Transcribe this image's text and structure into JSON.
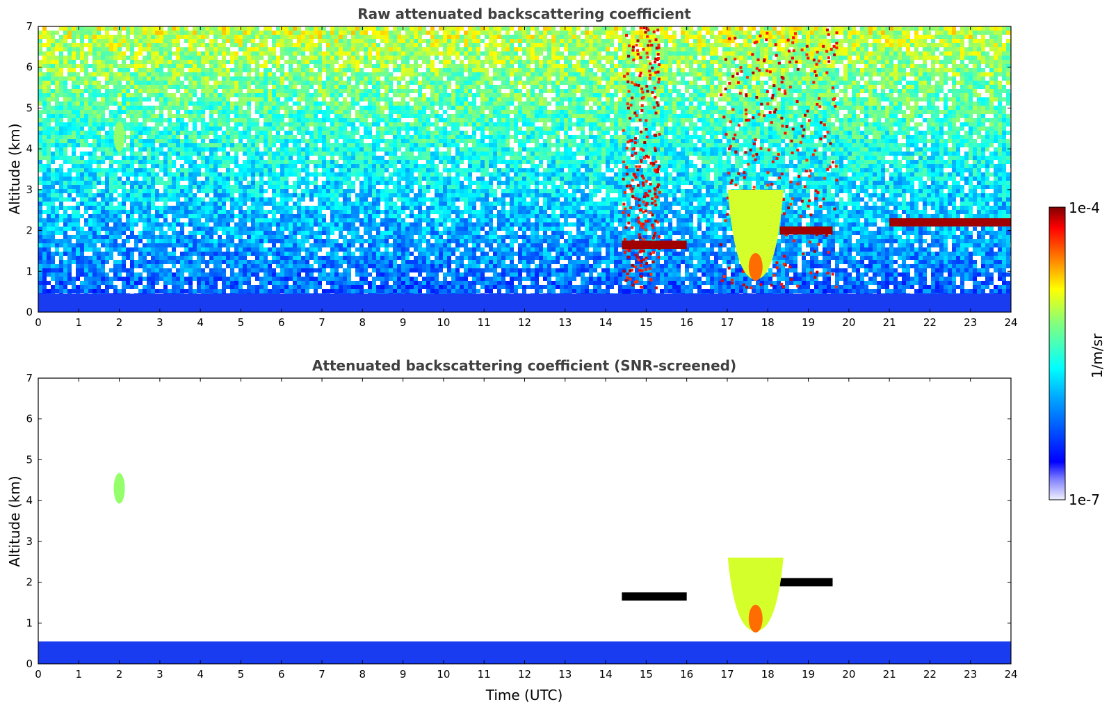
{
  "chart_data": [
    {
      "type": "heatmap",
      "title": "Raw attenuated backscattering coefficient",
      "xlabel": "",
      "ylabel": "Altitude (km)",
      "xlim": [
        0,
        24
      ],
      "ylim": [
        0,
        7
      ],
      "x_ticks": [
        0,
        1,
        2,
        3,
        4,
        5,
        6,
        7,
        8,
        9,
        10,
        11,
        12,
        13,
        14,
        15,
        16,
        17,
        18,
        19,
        20,
        21,
        22,
        23,
        24
      ],
      "y_ticks": [
        0,
        1,
        2,
        3,
        4,
        5,
        6,
        7
      ],
      "background_noise": "dense noise; increasing altitude shifts from blue to green/yellow",
      "features": [
        {
          "kind": "boundary_layer",
          "t0": 0,
          "t1": 24,
          "alt0": 0,
          "alt1": 0.45
        },
        {
          "kind": "aerosol_patch",
          "t": 2.0,
          "alt": 4.3,
          "level": "medium"
        },
        {
          "kind": "noisy_column",
          "t0": 14.4,
          "t1": 15.3,
          "level": "high"
        },
        {
          "kind": "noisy_column",
          "t0": 16.8,
          "t1": 19.7,
          "level": "high"
        },
        {
          "kind": "cloud_layer",
          "t0": 14.4,
          "t1": 16.0,
          "alt": 1.65
        },
        {
          "kind": "cloud_layer",
          "t0": 18.3,
          "t1": 19.6,
          "alt": 2.0
        },
        {
          "kind": "cloud_layer",
          "t0": 21.0,
          "t1": 24.0,
          "alt": 2.2
        },
        {
          "kind": "precip_plume",
          "t": 17.7,
          "alt0": 0.8,
          "alt1": 3.0
        }
      ]
    },
    {
      "type": "heatmap",
      "title": "Attenuated backscattering coefficient (SNR-screened)",
      "xlabel": "Time (UTC)",
      "ylabel": "Altitude (km)",
      "xlim": [
        0,
        24
      ],
      "ylim": [
        0,
        7
      ],
      "x_ticks": [
        0,
        1,
        2,
        3,
        4,
        5,
        6,
        7,
        8,
        9,
        10,
        11,
        12,
        13,
        14,
        15,
        16,
        17,
        18,
        19,
        20,
        21,
        22,
        23,
        24
      ],
      "y_ticks": [
        0,
        1,
        2,
        3,
        4,
        5,
        6,
        7
      ],
      "features": [
        {
          "kind": "boundary_layer",
          "t0": 0,
          "t1": 24,
          "alt0": 0,
          "alt1": 0.55
        },
        {
          "kind": "aerosol_patch",
          "t": 2.0,
          "alt": 4.3,
          "level": "medium"
        },
        {
          "kind": "cloud_layer",
          "t0": 14.4,
          "t1": 16.0,
          "alt": 1.65,
          "color": "#000000"
        },
        {
          "kind": "cloud_layer",
          "t0": 18.3,
          "t1": 19.6,
          "alt": 2.0,
          "color": "#000000"
        },
        {
          "kind": "precip_plume",
          "t": 17.7,
          "alt0": 0.8,
          "alt1": 2.6
        }
      ]
    }
  ],
  "colorbar": {
    "label": "1/m/sr",
    "max_label": "1e-4",
    "min_label": "1e-7",
    "scale": "log",
    "colormap": "jet"
  }
}
